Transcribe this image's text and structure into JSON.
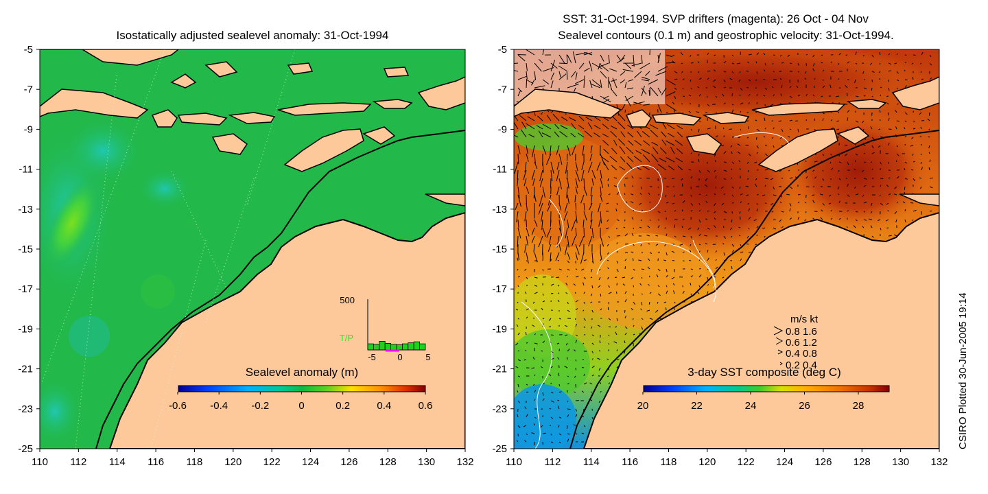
{
  "left_panel": {
    "title": "Isostatically adjusted sealevel anomaly: 31-Oct-1994",
    "colorbar": {
      "title": "Sealevel anomaly (m)",
      "ticks": [
        "-0.6",
        "-0.4",
        "-0.2",
        "0",
        "0.2",
        "0.4",
        "0.6"
      ]
    },
    "inset": {
      "ymax_label": "500",
      "series_label": "T/P",
      "x_ticks": [
        "-5",
        "0",
        "5"
      ],
      "bar_values": [
        60,
        55,
        85,
        65,
        55,
        50,
        60,
        70,
        80,
        60
      ]
    }
  },
  "right_panel": {
    "title_line1": "SST: 31-Oct-1994. SVP drifters (magenta): 26 Oct - 04 Nov",
    "title_line2": "Sealevel contours (0.1 m) and geostrophic velocity: 31-Oct-1994.",
    "colorbar": {
      "title": "3-day SST composite (deg C)",
      "ticks": [
        "20",
        "22",
        "24",
        "26",
        "28"
      ]
    },
    "velocity_legend": {
      "header": "m/s  kt",
      "rows": [
        "0.8  1.6",
        "0.6  1.2",
        "0.4  0.8",
        "0.2  0.4"
      ]
    }
  },
  "axes": {
    "lat_ticks": [
      "-5",
      "-7",
      "-9",
      "-11",
      "-13",
      "-15",
      "-17",
      "-19",
      "-21",
      "-23",
      "-25"
    ],
    "lon_ticks": [
      "110",
      "112",
      "114",
      "116",
      "118",
      "120",
      "122",
      "124",
      "126",
      "128",
      "130",
      "132"
    ],
    "lon_range": [
      110,
      132
    ],
    "lat_range": [
      -25,
      -5
    ]
  },
  "side_label": "CSIRO Plotted 30-Jun-2005 19:14",
  "colors": {
    "land": "#fdc89a",
    "sea_left": "#22b84a",
    "sea_right_warm": "#b8280a"
  }
}
